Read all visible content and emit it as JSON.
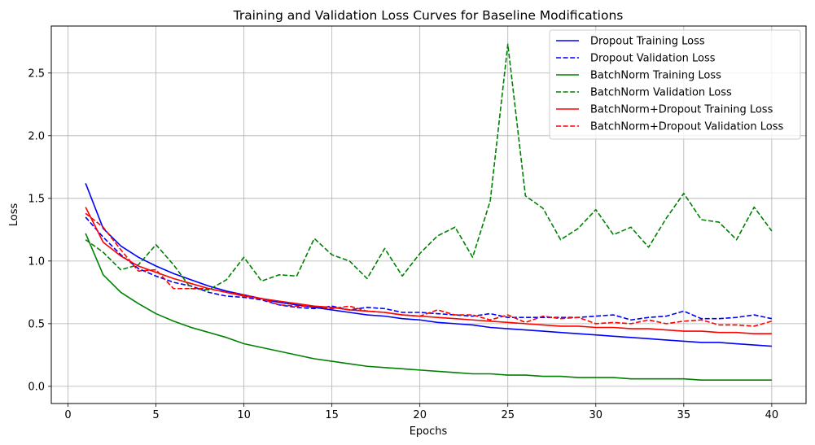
{
  "chart_data": {
    "type": "line",
    "title": "Training and Validation Loss Curves for Baseline Modifications",
    "xlabel": "Epochs",
    "ylabel": "Loss",
    "xlim": [
      -0.95,
      41.95
    ],
    "ylim": [
      -0.137,
      2.875
    ],
    "xticks": [
      0,
      5,
      10,
      15,
      20,
      25,
      30,
      35,
      40
    ],
    "yticks": [
      0.0,
      0.5,
      1.0,
      1.5,
      2.0,
      2.5
    ],
    "xtick_labels": [
      "0",
      "5",
      "10",
      "15",
      "20",
      "25",
      "30",
      "35",
      "40"
    ],
    "ytick_labels": [
      "0.0",
      "0.5",
      "1.0",
      "1.5",
      "2.0",
      "2.5"
    ],
    "grid": true,
    "legend_position": "upper right",
    "x": [
      1,
      2,
      3,
      4,
      5,
      6,
      7,
      8,
      9,
      10,
      11,
      12,
      13,
      14,
      15,
      16,
      17,
      18,
      19,
      20,
      21,
      22,
      23,
      24,
      25,
      26,
      27,
      28,
      29,
      30,
      31,
      32,
      33,
      34,
      35,
      36,
      37,
      38,
      39,
      40
    ],
    "series": [
      {
        "name": "Dropout Training Loss",
        "color": "#0000ff",
        "dash": "solid",
        "values": [
          1.62,
          1.26,
          1.12,
          1.03,
          0.96,
          0.9,
          0.85,
          0.8,
          0.76,
          0.73,
          0.7,
          0.67,
          0.65,
          0.63,
          0.61,
          0.59,
          0.57,
          0.56,
          0.54,
          0.53,
          0.51,
          0.5,
          0.49,
          0.47,
          0.46,
          0.45,
          0.44,
          0.43,
          0.42,
          0.41,
          0.4,
          0.39,
          0.38,
          0.37,
          0.36,
          0.35,
          0.35,
          0.34,
          0.33,
          0.32
        ]
      },
      {
        "name": "Dropout Validation Loss",
        "color": "#0000ff",
        "dash": "dashed",
        "values": [
          1.35,
          1.19,
          1.05,
          0.94,
          0.88,
          0.83,
          0.8,
          0.75,
          0.72,
          0.71,
          0.69,
          0.65,
          0.63,
          0.62,
          0.64,
          0.61,
          0.63,
          0.62,
          0.59,
          0.59,
          0.58,
          0.57,
          0.56,
          0.58,
          0.55,
          0.55,
          0.55,
          0.55,
          0.55,
          0.56,
          0.57,
          0.53,
          0.55,
          0.56,
          0.6,
          0.54,
          0.54,
          0.55,
          0.57,
          0.54
        ]
      },
      {
        "name": "BatchNorm Training Loss",
        "color": "#008000",
        "dash": "solid",
        "values": [
          1.22,
          0.89,
          0.75,
          0.66,
          0.58,
          0.52,
          0.47,
          0.43,
          0.39,
          0.34,
          0.31,
          0.28,
          0.25,
          0.22,
          0.2,
          0.18,
          0.16,
          0.15,
          0.14,
          0.13,
          0.12,
          0.11,
          0.1,
          0.1,
          0.09,
          0.09,
          0.08,
          0.08,
          0.07,
          0.07,
          0.07,
          0.06,
          0.06,
          0.06,
          0.06,
          0.05,
          0.05,
          0.05,
          0.05,
          0.05
        ]
      },
      {
        "name": "BatchNorm Validation Loss",
        "color": "#008000",
        "dash": "dashed",
        "values": [
          1.17,
          1.07,
          0.93,
          0.97,
          1.13,
          0.97,
          0.78,
          0.77,
          0.85,
          1.03,
          0.84,
          0.89,
          0.88,
          1.18,
          1.05,
          1.0,
          0.86,
          1.1,
          0.88,
          1.06,
          1.2,
          1.27,
          1.03,
          1.48,
          2.73,
          1.52,
          1.42,
          1.17,
          1.26,
          1.41,
          1.21,
          1.27,
          1.11,
          1.34,
          1.54,
          1.33,
          1.31,
          1.17,
          1.43,
          1.24
        ]
      },
      {
        "name": "BatchNorm+Dropout Training Loss",
        "color": "#ff0000",
        "dash": "solid",
        "values": [
          1.43,
          1.15,
          1.04,
          0.96,
          0.91,
          0.86,
          0.82,
          0.78,
          0.75,
          0.72,
          0.7,
          0.68,
          0.66,
          0.64,
          0.63,
          0.61,
          0.6,
          0.59,
          0.57,
          0.56,
          0.55,
          0.54,
          0.53,
          0.52,
          0.51,
          0.5,
          0.49,
          0.48,
          0.48,
          0.47,
          0.47,
          0.46,
          0.46,
          0.45,
          0.44,
          0.44,
          0.43,
          0.43,
          0.42,
          0.42
        ]
      },
      {
        "name": "BatchNorm+Dropout Validation Loss",
        "color": "#ff0000",
        "dash": "dashed",
        "values": [
          1.38,
          1.27,
          1.09,
          0.92,
          0.93,
          0.78,
          0.78,
          0.78,
          0.75,
          0.73,
          0.7,
          0.65,
          0.64,
          0.64,
          0.62,
          0.64,
          0.6,
          0.59,
          0.57,
          0.56,
          0.61,
          0.57,
          0.57,
          0.53,
          0.57,
          0.51,
          0.56,
          0.54,
          0.55,
          0.5,
          0.51,
          0.5,
          0.53,
          0.5,
          0.52,
          0.53,
          0.49,
          0.49,
          0.48,
          0.52
        ]
      }
    ]
  }
}
